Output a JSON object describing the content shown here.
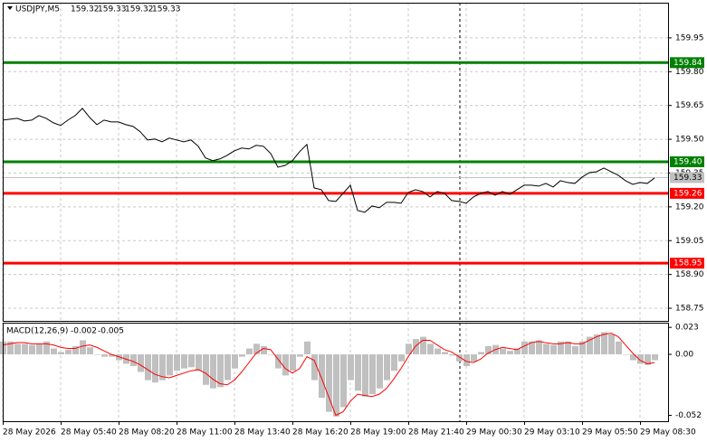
{
  "chart_data": [
    {
      "type": "line",
      "title": "USDJPY,M5",
      "ohlc": [
        159.32,
        159.33,
        159.32,
        159.33
      ],
      "color": "#000000",
      "categories": [
        "28 May 2026",
        null,
        null,
        null,
        null,
        null,
        null,
        null,
        "28 May 05:40",
        null,
        null,
        null,
        null,
        null,
        null,
        null,
        "28 May 08:20",
        null,
        null,
        null,
        null,
        null,
        null,
        null,
        "28 May 11:00",
        null,
        null,
        null,
        null,
        null,
        null,
        null,
        "28 May 13:40",
        null,
        null,
        null,
        null,
        null,
        null,
        null,
        "28 May 16:20",
        null,
        null,
        null,
        null,
        null,
        null,
        null,
        "28 May 19:00",
        null,
        null,
        null,
        null,
        null,
        null,
        null,
        "28 May 21:40",
        null,
        null,
        null,
        null,
        null,
        null,
        null,
        "29 May 00:30",
        null,
        null,
        null,
        null,
        null,
        null,
        null,
        "29 May 03:10",
        null,
        null,
        null,
        null,
        null,
        null,
        null,
        "29 May 05:50",
        null,
        null,
        null,
        null,
        null,
        null,
        null,
        "29 May 08:30",
        null,
        null
      ],
      "values": [
        159.585,
        159.589,
        159.593,
        159.581,
        159.585,
        159.605,
        159.593,
        159.573,
        159.561,
        159.585,
        159.605,
        159.637,
        159.597,
        159.565,
        159.585,
        159.577,
        159.577,
        159.565,
        159.557,
        159.533,
        159.497,
        159.501,
        159.489,
        159.505,
        159.497,
        159.489,
        159.497,
        159.469,
        159.417,
        159.405,
        159.413,
        159.429,
        159.449,
        159.461,
        159.457,
        159.473,
        159.469,
        159.437,
        159.376,
        159.384,
        159.405,
        159.445,
        159.477,
        159.284,
        159.276,
        159.228,
        159.224,
        159.26,
        159.296,
        159.184,
        159.176,
        159.204,
        159.196,
        159.22,
        159.22,
        159.216,
        159.264,
        159.276,
        159.268,
        159.244,
        159.268,
        159.26,
        159.228,
        159.224,
        159.216,
        159.244,
        159.26,
        159.268,
        159.252,
        159.268,
        159.256,
        159.276,
        159.296,
        159.296,
        159.292,
        159.304,
        159.288,
        159.316,
        159.308,
        159.304,
        159.332,
        159.352,
        159.356,
        159.372,
        159.356,
        159.34,
        159.316,
        159.3,
        159.308,
        159.304,
        159.328
      ],
      "ylim": [
        158.694,
        160.106
      ],
      "yticks": [
        159.95,
        {
          "value": 159.8,
          "label": "159.80"
        },
        159.65,
        {
          "value": 159.5,
          "label": "159.50"
        },
        159.35,
        {
          "value": 159.2,
          "label": "159.20"
        },
        159.05,
        {
          "value": 158.9,
          "label": "158.90"
        },
        158.75
      ],
      "levels": [
        {
          "value": 159.84,
          "label": "159.84",
          "color": "#008000"
        },
        {
          "value": 159.4,
          "label": "159.40",
          "color": "#008000"
        },
        {
          "value": 159.26,
          "label": "159.26",
          "color": "#ff0000"
        },
        {
          "value": 158.95,
          "label": "158.95",
          "color": "#ff0000"
        }
      ],
      "current": {
        "value": 159.33,
        "label": "159.33",
        "color": "#c0c0c0"
      },
      "grid": true
    },
    {
      "type": "macd",
      "title": "MACD(12,26,9)",
      "title_values": [
        -0.002,
        -0.005
      ],
      "histogram": {
        "color": "#c0c0c0",
        "values": [
          0.011,
          0.011,
          0.009,
          0.009,
          0.008,
          0.009,
          0.011,
          0.005,
          0.002,
          0.004,
          0.007,
          0.012,
          0.006,
          0,
          -0.002,
          -0.002,
          -0.005,
          -0.008,
          -0.01,
          -0.015,
          -0.022,
          -0.024,
          -0.022,
          -0.018,
          -0.014,
          -0.012,
          -0.011,
          -0.014,
          -0.026,
          -0.029,
          -0.028,
          -0.022,
          -0.012,
          -0.002,
          0.005,
          0.009,
          0.007,
          0,
          -0.012,
          -0.018,
          -0.014,
          -0.002,
          0.011,
          -0.022,
          -0.037,
          -0.049,
          -0.053,
          -0.045,
          -0.022,
          -0.031,
          -0.036,
          -0.034,
          -0.029,
          -0.022,
          -0.014,
          -0.006,
          0.009,
          0.013,
          0.015,
          0.009,
          0.005,
          0.002,
          -0.001,
          -0.006,
          -0.01,
          -0.006,
          0.002,
          0.007,
          0.008,
          0.005,
          0.003,
          0.005,
          0.011,
          0.011,
          0.012,
          0.009,
          0.008,
          0.011,
          0.011,
          0.007,
          0.011,
          0.015,
          0.017,
          0.019,
          0.017,
          0.011,
          0,
          -0.005,
          -0.008,
          -0.009,
          -0.005
        ]
      },
      "signal": {
        "color": "#ff0000",
        "values": [
          0.008,
          0.009,
          0.01,
          0.01,
          0.009,
          0.009,
          0.009,
          0.008,
          0.006,
          0.005,
          0.005,
          0.007,
          0.008,
          0.006,
          0.003,
          0,
          -0.002,
          -0.004,
          -0.006,
          -0.009,
          -0.013,
          -0.017,
          -0.019,
          -0.02,
          -0.018,
          -0.016,
          -0.014,
          -0.013,
          -0.016,
          -0.021,
          -0.025,
          -0.026,
          -0.022,
          -0.015,
          -0.007,
          0.001,
          0.005,
          0.004,
          -0.004,
          -0.012,
          -0.016,
          -0.012,
          -0.002,
          -0.005,
          -0.02,
          -0.036,
          -0.052,
          -0.049,
          -0.04,
          -0.034,
          -0.035,
          -0.036,
          -0.034,
          -0.029,
          -0.021,
          -0.012,
          -0.002,
          0.007,
          0.012,
          0.012,
          0.008,
          0.004,
          0.002,
          -0.002,
          -0.006,
          -0.007,
          -0.004,
          0.001,
          0.004,
          0.006,
          0.005,
          0.004,
          0.007,
          0.01,
          0.011,
          0.01,
          0.009,
          0.009,
          0.01,
          0.009,
          0.009,
          0.012,
          0.015,
          0.017,
          0.018,
          0.015,
          0.008,
          0.001,
          -0.005,
          -0.008,
          -0.007
        ]
      },
      "ylim": [
        -0.057,
        0.027
      ],
      "yticks": [
        0.023,
        {
          "value": 0,
          "label": "0.00"
        },
        -0.052
      ]
    }
  ]
}
